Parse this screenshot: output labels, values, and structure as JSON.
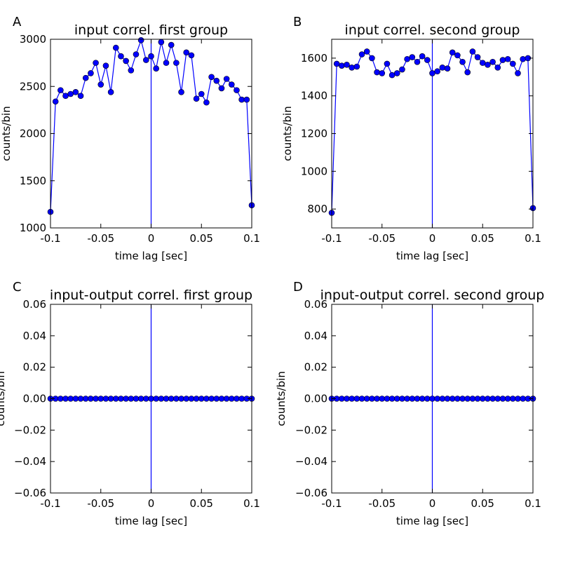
{
  "chart_data": [
    {
      "panel": "A",
      "type": "line",
      "title": "input correl. first group",
      "xlabel": "time lag [sec]",
      "ylabel": "counts/bin",
      "xlim": [
        -0.1,
        0.1
      ],
      "ylim": [
        1000,
        3000
      ],
      "xticks": [
        -0.1,
        -0.05,
        0,
        0.05,
        0.1
      ],
      "xtick_labels": [
        "-0.1",
        "-0.05",
        "0",
        "0.05",
        "0.1"
      ],
      "yticks": [
        1000,
        1500,
        2000,
        2500,
        3000
      ],
      "ytick_labels": [
        "1000",
        "1500",
        "2000",
        "2500",
        "3000"
      ],
      "marker": "circle",
      "color": "#0000ff",
      "vline_x": 0,
      "grid": false,
      "x": [
        -0.1,
        -0.095,
        -0.09,
        -0.085,
        -0.08,
        -0.075,
        -0.07,
        -0.065,
        -0.06,
        -0.055,
        -0.05,
        -0.045,
        -0.04,
        -0.035,
        -0.03,
        -0.025,
        -0.02,
        -0.015,
        -0.01,
        -0.005,
        0,
        0.005,
        0.01,
        0.015,
        0.02,
        0.025,
        0.03,
        0.035,
        0.04,
        0.045,
        0.05,
        0.055,
        0.06,
        0.065,
        0.07,
        0.075,
        0.08,
        0.085,
        0.09,
        0.095,
        0.1
      ],
      "y": [
        1170,
        2340,
        2460,
        2400,
        2420,
        2440,
        2400,
        2590,
        2640,
        2750,
        2520,
        2720,
        2440,
        2910,
        2820,
        2770,
        2670,
        2840,
        2990,
        2780,
        2820,
        2690,
        2970,
        2750,
        2940,
        2750,
        2440,
        2860,
        2830,
        2370,
        2420,
        2330,
        2600,
        2560,
        2480,
        2580,
        2520,
        2460,
        2360,
        2360,
        1240
      ]
    },
    {
      "panel": "B",
      "type": "line",
      "title": "input correl. second group",
      "xlabel": "time lag [sec]",
      "ylabel": "counts/bin",
      "xlim": [
        -0.1,
        0.1
      ],
      "ylim": [
        700,
        1700
      ],
      "xticks": [
        -0.1,
        -0.05,
        0,
        0.05,
        0.1
      ],
      "xtick_labels": [
        "-0.1",
        "-0.05",
        "0",
        "0.05",
        "0.1"
      ],
      "yticks": [
        800,
        1000,
        1200,
        1400,
        1600
      ],
      "ytick_labels": [
        "800",
        "1000",
        "1200",
        "1400",
        "1600"
      ],
      "marker": "circle",
      "color": "#0000ff",
      "vline_x": 0,
      "grid": false,
      "x": [
        -0.1,
        -0.095,
        -0.09,
        -0.085,
        -0.08,
        -0.075,
        -0.07,
        -0.065,
        -0.06,
        -0.055,
        -0.05,
        -0.045,
        -0.04,
        -0.035,
        -0.03,
        -0.025,
        -0.02,
        -0.015,
        -0.01,
        -0.005,
        0,
        0.005,
        0.01,
        0.015,
        0.02,
        0.025,
        0.03,
        0.035,
        0.04,
        0.045,
        0.05,
        0.055,
        0.06,
        0.065,
        0.07,
        0.075,
        0.08,
        0.085,
        0.09,
        0.095,
        0.1
      ],
      "y": [
        780,
        1570,
        1560,
        1565,
        1550,
        1555,
        1620,
        1635,
        1600,
        1525,
        1520,
        1570,
        1510,
        1520,
        1540,
        1595,
        1605,
        1580,
        1610,
        1590,
        1520,
        1530,
        1550,
        1545,
        1630,
        1615,
        1580,
        1525,
        1635,
        1605,
        1575,
        1565,
        1580,
        1550,
        1590,
        1595,
        1570,
        1520,
        1595,
        1600,
        805
      ]
    },
    {
      "panel": "C",
      "type": "line",
      "title": "input-output correl. first group",
      "xlabel": "time lag [sec]",
      "ylabel": "counts/bin",
      "xlim": [
        -0.1,
        0.1
      ],
      "ylim": [
        -0.06,
        0.06
      ],
      "xticks": [
        -0.1,
        -0.05,
        0,
        0.05,
        0.1
      ],
      "xtick_labels": [
        "-0.1",
        "-0.05",
        "0",
        "0.05",
        "0.1"
      ],
      "yticks": [
        -0.06,
        -0.04,
        -0.02,
        0,
        0.02,
        0.04,
        0.06
      ],
      "ytick_labels": [
        "−0.06",
        "−0.04",
        "−0.02",
        "0.00",
        "0.02",
        "0.04",
        "0.06"
      ],
      "marker": "circle",
      "color": "#0000ff",
      "vline_x": 0,
      "grid": false,
      "x": [
        -0.1,
        -0.095,
        -0.09,
        -0.085,
        -0.08,
        -0.075,
        -0.07,
        -0.065,
        -0.06,
        -0.055,
        -0.05,
        -0.045,
        -0.04,
        -0.035,
        -0.03,
        -0.025,
        -0.02,
        -0.015,
        -0.01,
        -0.005,
        0,
        0.005,
        0.01,
        0.015,
        0.02,
        0.025,
        0.03,
        0.035,
        0.04,
        0.045,
        0.05,
        0.055,
        0.06,
        0.065,
        0.07,
        0.075,
        0.08,
        0.085,
        0.09,
        0.095,
        0.1
      ],
      "y": [
        0,
        0,
        0,
        0,
        0,
        0,
        0,
        0,
        0,
        0,
        0,
        0,
        0,
        0,
        0,
        0,
        0,
        0,
        0,
        0,
        0,
        0,
        0,
        0,
        0,
        0,
        0,
        0,
        0,
        0,
        0,
        0,
        0,
        0,
        0,
        0,
        0,
        0,
        0,
        0,
        0
      ]
    },
    {
      "panel": "D",
      "type": "line",
      "title": "input-output correl. second group",
      "xlabel": "time lag [sec]",
      "ylabel": "counts/bin",
      "xlim": [
        -0.1,
        0.1
      ],
      "ylim": [
        -0.06,
        0.06
      ],
      "xticks": [
        -0.1,
        -0.05,
        0,
        0.05,
        0.1
      ],
      "xtick_labels": [
        "-0.1",
        "-0.05",
        "0",
        "0.05",
        "0.1"
      ],
      "yticks": [
        -0.06,
        -0.04,
        -0.02,
        0,
        0.02,
        0.04,
        0.06
      ],
      "ytick_labels": [
        "−0.06",
        "−0.04",
        "−0.02",
        "0.00",
        "0.02",
        "0.04",
        "0.06"
      ],
      "marker": "circle",
      "color": "#0000ff",
      "vline_x": 0,
      "grid": false,
      "x": [
        -0.1,
        -0.095,
        -0.09,
        -0.085,
        -0.08,
        -0.075,
        -0.07,
        -0.065,
        -0.06,
        -0.055,
        -0.05,
        -0.045,
        -0.04,
        -0.035,
        -0.03,
        -0.025,
        -0.02,
        -0.015,
        -0.01,
        -0.005,
        0,
        0.005,
        0.01,
        0.015,
        0.02,
        0.025,
        0.03,
        0.035,
        0.04,
        0.045,
        0.05,
        0.055,
        0.06,
        0.065,
        0.07,
        0.075,
        0.08,
        0.085,
        0.09,
        0.095,
        0.1
      ],
      "y": [
        0,
        0,
        0,
        0,
        0,
        0,
        0,
        0,
        0,
        0,
        0,
        0,
        0,
        0,
        0,
        0,
        0,
        0,
        0,
        0,
        0,
        0,
        0,
        0,
        0,
        0,
        0,
        0,
        0,
        0,
        0,
        0,
        0,
        0,
        0,
        0,
        0,
        0,
        0,
        0,
        0
      ]
    }
  ]
}
